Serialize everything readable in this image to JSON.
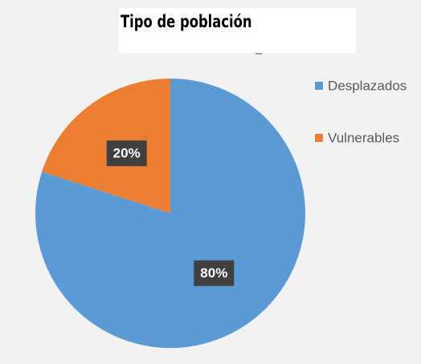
{
  "chart_data": {
    "type": "pie",
    "title": "Tipo de población",
    "categories": [
      "Desplazados",
      "Vulnerables"
    ],
    "values": [
      80,
      20
    ],
    "value_labels": [
      "80%",
      "20%"
    ],
    "colors": [
      "#5b9bd5",
      "#ed7d31"
    ],
    "legend": "right"
  }
}
